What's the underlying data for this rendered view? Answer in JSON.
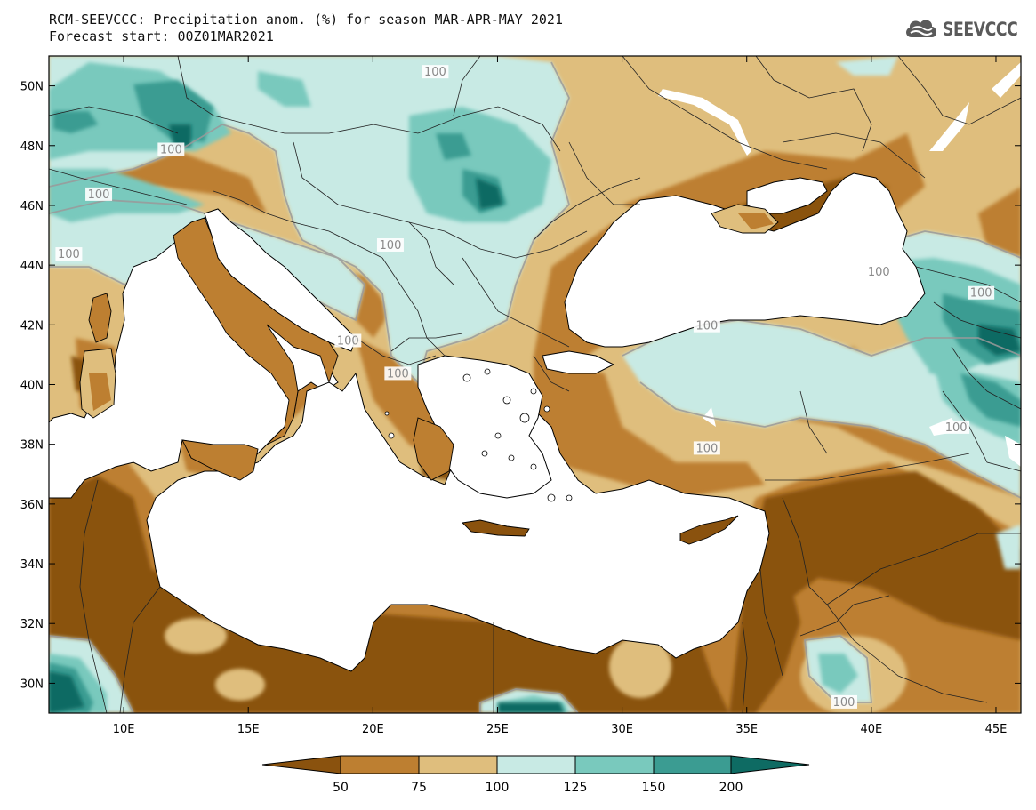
{
  "header": {
    "title_line1": "RCM-SEEVCCC: Precipitation anom. (%) for season MAR-APR-MAY 2021",
    "title_line2": "Forecast start: 00Z01MAR2021"
  },
  "logo": {
    "text": "SEEVCCC",
    "icon": "cloud-icon"
  },
  "map": {
    "variable": "Precipitation anomaly",
    "unit": "%",
    "season": "MAR-APR-MAY 2021",
    "lon_range": [
      7,
      46
    ],
    "lat_range": [
      29,
      51
    ],
    "lat_ticks": [
      {
        "value": 30,
        "label": "30N"
      },
      {
        "value": 32,
        "label": "32N"
      },
      {
        "value": 34,
        "label": "34N"
      },
      {
        "value": 36,
        "label": "36N"
      },
      {
        "value": 38,
        "label": "38N"
      },
      {
        "value": 40,
        "label": "40N"
      },
      {
        "value": 42,
        "label": "42N"
      },
      {
        "value": 44,
        "label": "44N"
      },
      {
        "value": 46,
        "label": "46N"
      },
      {
        "value": 48,
        "label": "48N"
      },
      {
        "value": 50,
        "label": "50N"
      }
    ],
    "lon_ticks": [
      {
        "value": 10,
        "label": "10E"
      },
      {
        "value": 15,
        "label": "15E"
      },
      {
        "value": 20,
        "label": "20E"
      },
      {
        "value": 25,
        "label": "25E"
      },
      {
        "value": 30,
        "label": "30E"
      },
      {
        "value": 35,
        "label": "35E"
      },
      {
        "value": 40,
        "label": "40E"
      },
      {
        "value": 45,
        "label": "45E"
      }
    ],
    "contour_labels": [
      {
        "text": "100",
        "lon": 22.5,
        "lat": 50.4
      },
      {
        "text": "100",
        "lon": 11.9,
        "lat": 47.8
      },
      {
        "text": "100",
        "lon": 9.0,
        "lat": 46.3
      },
      {
        "text": "100",
        "lon": 7.8,
        "lat": 44.3
      },
      {
        "text": "100",
        "lon": 20.7,
        "lat": 44.6
      },
      {
        "text": "100",
        "lon": 40.3,
        "lat": 43.7
      },
      {
        "text": "100",
        "lon": 44.4,
        "lat": 43.0
      },
      {
        "text": "100",
        "lon": 33.4,
        "lat": 41.9
      },
      {
        "text": "100",
        "lon": 19.0,
        "lat": 41.4
      },
      {
        "text": "100",
        "lon": 21.0,
        "lat": 40.3
      },
      {
        "text": "100",
        "lon": 43.4,
        "lat": 38.5
      },
      {
        "text": "100",
        "lon": 33.4,
        "lat": 37.8
      },
      {
        "text": "100",
        "lon": 38.9,
        "lat": 29.3
      }
    ]
  },
  "colorbar": {
    "levels": [
      "50",
      "75",
      "100",
      "125",
      "150",
      "200"
    ],
    "colors": {
      "below_50": "#8a520e",
      "50_75": "#bd7f31",
      "75_100": "#dfbe7d",
      "100_125": "#c8eae4",
      "125_150": "#79c9bd",
      "150_200": "#3b9c92",
      "above_200": "#0e6b63"
    }
  }
}
